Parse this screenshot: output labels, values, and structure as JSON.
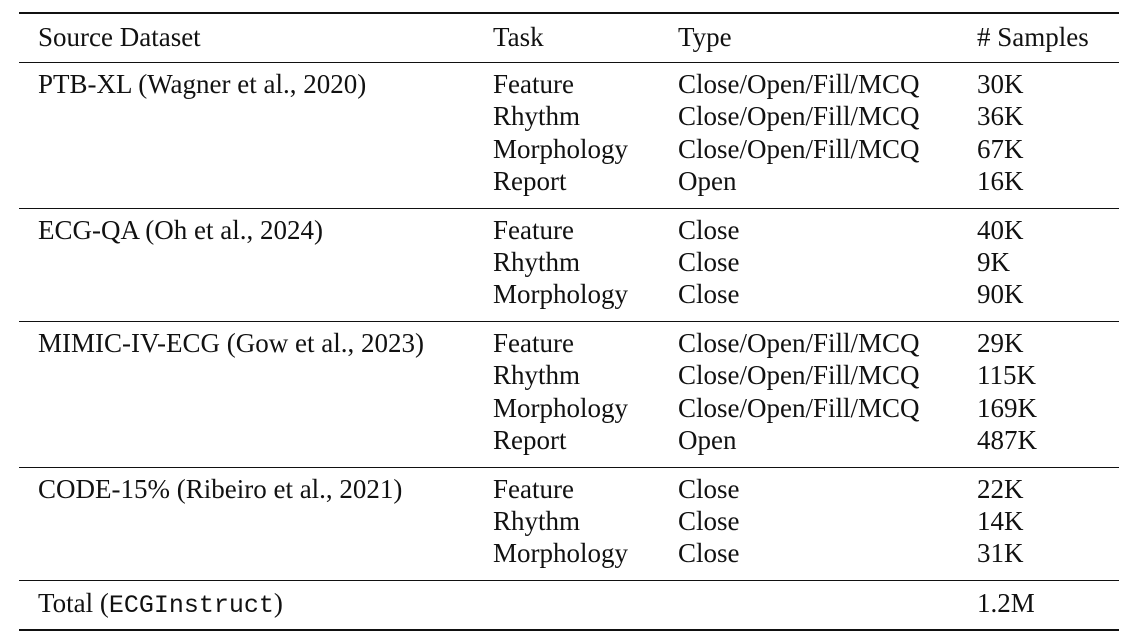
{
  "table": {
    "headers": {
      "source": "Source Dataset",
      "task": "Task",
      "type": "Type",
      "samples": "# Samples"
    },
    "groups": [
      {
        "source": "PTB-XL (Wagner et al., 2020)",
        "rows": [
          {
            "task": "Feature",
            "type": "Close/Open/Fill/MCQ",
            "samples": "30K"
          },
          {
            "task": "Rhythm",
            "type": "Close/Open/Fill/MCQ",
            "samples": "36K"
          },
          {
            "task": "Morphology",
            "type": "Close/Open/Fill/MCQ",
            "samples": "67K"
          },
          {
            "task": "Report",
            "type": "Open",
            "samples": "16K"
          }
        ]
      },
      {
        "source": "ECG-QA (Oh et al., 2024)",
        "rows": [
          {
            "task": "Feature",
            "type": "Close",
            "samples": "40K"
          },
          {
            "task": "Rhythm",
            "type": "Close",
            "samples": "9K"
          },
          {
            "task": "Morphology",
            "type": "Close",
            "samples": "90K"
          }
        ]
      },
      {
        "source": "MIMIC-IV-ECG (Gow et al., 2023)",
        "rows": [
          {
            "task": "Feature",
            "type": "Close/Open/Fill/MCQ",
            "samples": "29K"
          },
          {
            "task": "Rhythm",
            "type": "Close/Open/Fill/MCQ",
            "samples": "115K"
          },
          {
            "task": "Morphology",
            "type": "Close/Open/Fill/MCQ",
            "samples": "169K"
          },
          {
            "task": "Report",
            "type": "Open",
            "samples": "487K"
          }
        ]
      },
      {
        "source": "CODE-15% (Ribeiro et al., 2021)",
        "rows": [
          {
            "task": "Feature",
            "type": "Close",
            "samples": "22K"
          },
          {
            "task": "Rhythm",
            "type": "Close",
            "samples": "14K"
          },
          {
            "task": "Morphology",
            "type": "Close",
            "samples": "31K"
          }
        ]
      }
    ],
    "total": {
      "label_prefix": "Total (",
      "label_name": "ECGInstruct",
      "label_suffix": ")",
      "samples": "1.2M"
    }
  }
}
